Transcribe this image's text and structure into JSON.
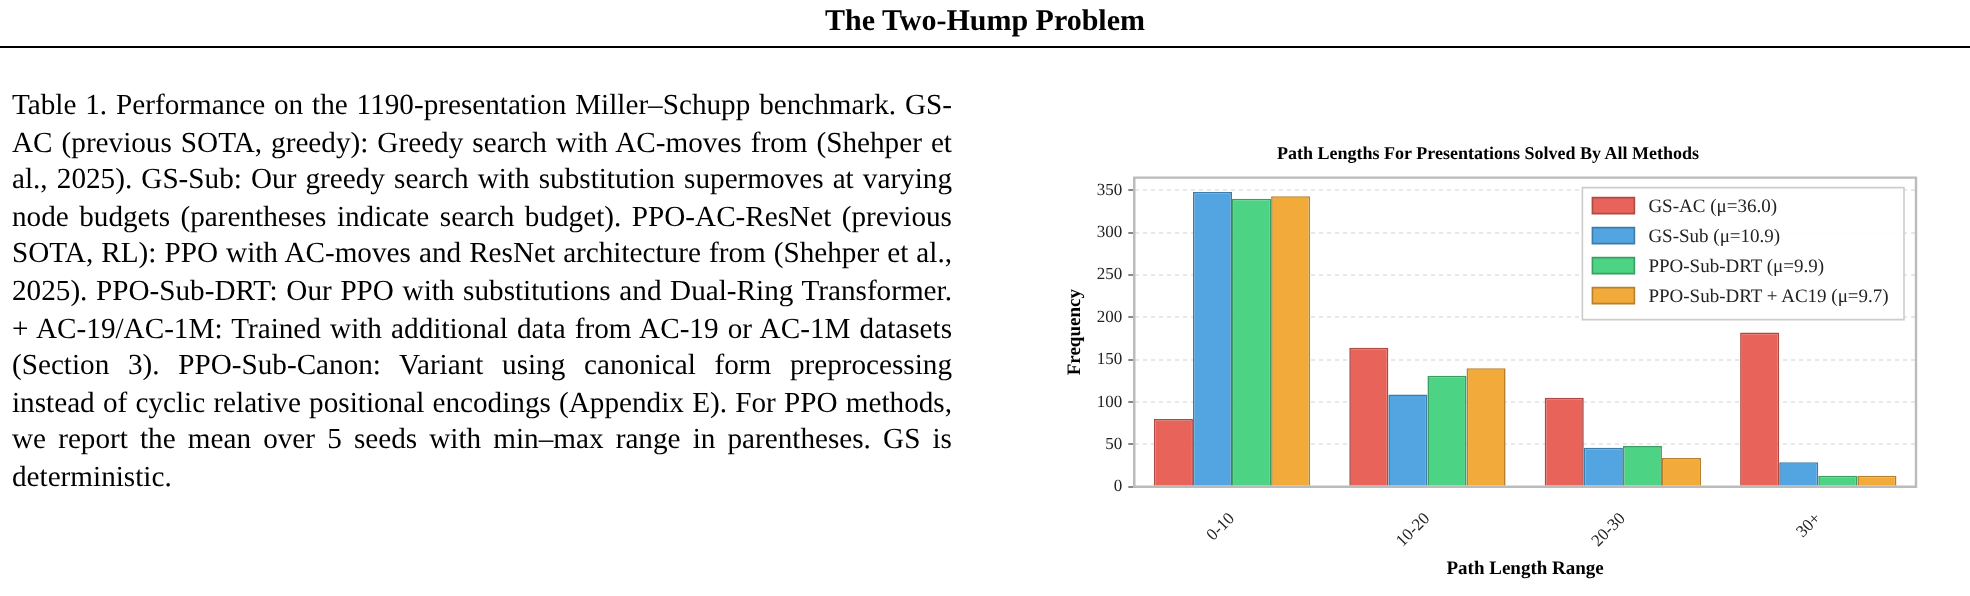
{
  "chart_data": {
    "type": "bar",
    "title": "Path Lengths For Presentations Solved By All Methods",
    "xlabel": "Path Length Range",
    "ylabel": "Frequency",
    "categories": [
      "0-10",
      "10-20",
      "20-30",
      "30+"
    ],
    "series": [
      {
        "name": "GS-AC (μ=36.0)",
        "color": "#e8635a",
        "values": [
          80,
          164,
          105,
          182
        ]
      },
      {
        "name": "GS-Sub (μ=10.9)",
        "color": "#52a5e0",
        "values": [
          348,
          109,
          46,
          29
        ]
      },
      {
        "name": "PPO-Sub-DRT (μ=9.9)",
        "color": "#4dd384",
        "values": [
          340,
          131,
          48,
          13
        ]
      },
      {
        "name": "PPO-Sub-DRT + AC19 (μ=9.7)",
        "color": "#f2aa3a",
        "values": [
          343,
          140,
          34,
          13
        ]
      }
    ],
    "ylim": [
      0,
      365
    ],
    "yticks": [
      0,
      50,
      100,
      150,
      200,
      250,
      300,
      350
    ],
    "grid": "y",
    "legend": "top right",
    "annotations": [
      "The Two-Hump Problem",
      "Table 1. Performance on the 1190-presentation Miller–Schupp benchmark. GS-AC (previous SOTA, greedy): Greedy search with AC-moves from (Shehper et al., 2025). GS-Sub: Our greedy search with substitution supermoves at varying node budgets (parentheses indicate search budget). PPO-AC-ResNet (previous SOTA, RL): PPO with AC-moves and ResNet architecture from (Shehper et al., 2025). PPO-Sub-DRT: Our PPO with substitutions and Dual-Ring Transformer. + AC-19/AC-1M: Trained with additional data from AC-19 or AC-1M datasets (Section 3). PPO-Sub-Canon: Variant using canonical form preprocessing instead of cyclic relative positional encodings (Appendix E). For PPO methods, we report the mean over 5 seeds with min–max range in parentheses. GS is deterministic."
    ]
  }
}
